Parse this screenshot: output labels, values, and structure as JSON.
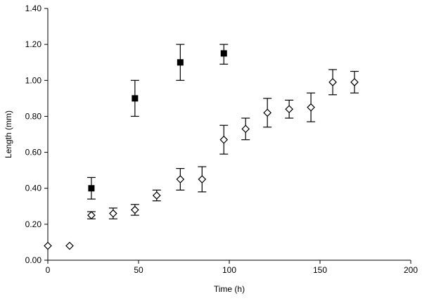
{
  "chart_data": {
    "type": "scatter",
    "title": "",
    "xlabel": "Time (h)",
    "ylabel": "Length (mm)",
    "xlim": [
      0,
      200
    ],
    "ylim": [
      0,
      1.4
    ],
    "x_ticks": [
      "0",
      "50",
      "100",
      "150",
      "200"
    ],
    "y_ticks": [
      "0.00",
      "0.20",
      "0.40",
      "0.60",
      "0.80",
      "1.00",
      "1.20",
      "1.40"
    ],
    "grid": false,
    "legend": "none",
    "series": [
      {
        "marker": "filled-square",
        "color": "#000000",
        "points": [
          {
            "x": 24,
            "y": 0.4,
            "err_low": 0.06,
            "err_high": 0.06
          },
          {
            "x": 48,
            "y": 0.9,
            "err_low": 0.1,
            "err_high": 0.1
          },
          {
            "x": 73,
            "y": 1.1,
            "err_low": 0.1,
            "err_high": 0.1
          },
          {
            "x": 97,
            "y": 1.15,
            "err_low": 0.06,
            "err_high": 0.05
          }
        ]
      },
      {
        "marker": "open-diamond",
        "color": "#000000",
        "points": [
          {
            "x": 0,
            "y": 0.08,
            "err_low": 0,
            "err_high": 0
          },
          {
            "x": 12,
            "y": 0.08,
            "err_low": 0,
            "err_high": 0
          },
          {
            "x": 24,
            "y": 0.25,
            "err_low": 0.02,
            "err_high": 0.02
          },
          {
            "x": 36,
            "y": 0.26,
            "err_low": 0.03,
            "err_high": 0.03
          },
          {
            "x": 48,
            "y": 0.28,
            "err_low": 0.03,
            "err_high": 0.03
          },
          {
            "x": 60,
            "y": 0.36,
            "err_low": 0.03,
            "err_high": 0.03
          },
          {
            "x": 73,
            "y": 0.45,
            "err_low": 0.06,
            "err_high": 0.06
          },
          {
            "x": 85,
            "y": 0.45,
            "err_low": 0.07,
            "err_high": 0.07
          },
          {
            "x": 97,
            "y": 0.67,
            "err_low": 0.08,
            "err_high": 0.08
          },
          {
            "x": 109,
            "y": 0.73,
            "err_low": 0.06,
            "err_high": 0.06
          },
          {
            "x": 121,
            "y": 0.82,
            "err_low": 0.08,
            "err_high": 0.08
          },
          {
            "x": 133,
            "y": 0.84,
            "err_low": 0.05,
            "err_high": 0.05
          },
          {
            "x": 145,
            "y": 0.85,
            "err_low": 0.08,
            "err_high": 0.08
          },
          {
            "x": 157,
            "y": 0.99,
            "err_low": 0.07,
            "err_high": 0.07
          },
          {
            "x": 169,
            "y": 0.99,
            "err_low": 0.06,
            "err_high": 0.06
          }
        ]
      }
    ]
  }
}
